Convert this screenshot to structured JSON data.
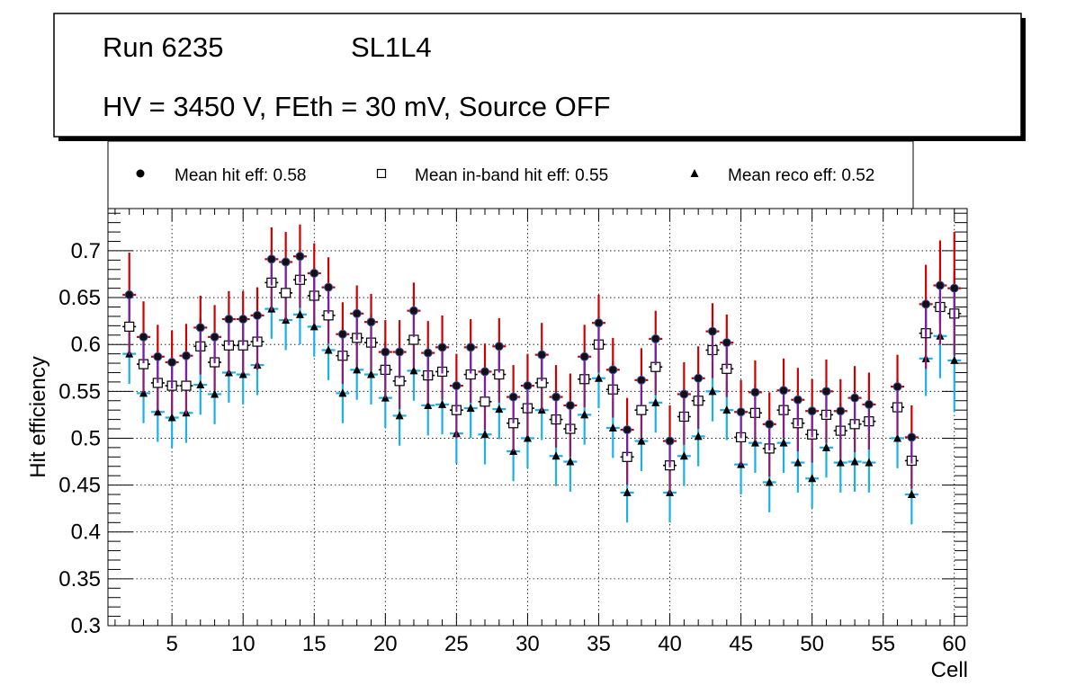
{
  "info_box": {
    "run": "Run 6235",
    "chamber": "SL1L4",
    "conditions": "HV = 3450 V, FEth = 30 mV, Source OFF"
  },
  "legend": {
    "hit": "Mean hit  eff: 0.58",
    "inband": "Mean in-band hit eff: 0.55",
    "reco": "Mean reco eff: 0.52"
  },
  "colors": {
    "hit_err_up": "#cc0000",
    "hit_err_down": "#7b1fa2",
    "hit_marker": "#111111",
    "hit_marker_fill": "#3f51b5",
    "inband_err": "#8e1b6e",
    "inband_marker_fill": "#ffffff",
    "reco_err": "#1ab0e8",
    "reco_marker": "#000000"
  },
  "chart_data": {
    "type": "scatter",
    "title": "",
    "xlabel": "Cell",
    "ylabel": "Hit efficiency",
    "xlim": [
      0.5,
      60.9
    ],
    "ylim": [
      0.3,
      0.745
    ],
    "x_ticks": [
      5,
      10,
      15,
      20,
      25,
      30,
      35,
      40,
      45,
      50,
      55,
      60
    ],
    "y_ticks": [
      0.3,
      0.35,
      0.4,
      0.45,
      0.5,
      0.55,
      0.6,
      0.65,
      0.7
    ],
    "y_tick_labels": [
      "0.3",
      "0.35",
      "0.4",
      "0.45",
      "0.5",
      "0.55",
      "0.6",
      "0.65",
      "0.7"
    ],
    "grid": true,
    "cells": [
      2,
      3,
      4,
      5,
      6,
      7,
      8,
      9,
      10,
      11,
      12,
      13,
      14,
      15,
      16,
      17,
      18,
      19,
      20,
      21,
      22,
      23,
      24,
      25,
      26,
      27,
      28,
      29,
      30,
      31,
      32,
      33,
      34,
      35,
      36,
      37,
      38,
      39,
      40,
      41,
      42,
      43,
      44,
      45,
      46,
      47,
      48,
      49,
      50,
      51,
      52,
      53,
      54,
      56,
      57,
      58,
      59,
      60
    ],
    "series": [
      {
        "name": "Mean hit eff",
        "values": [
          0.653,
          0.608,
          0.587,
          0.581,
          0.588,
          0.618,
          0.608,
          0.627,
          0.627,
          0.631,
          0.691,
          0.688,
          0.694,
          0.676,
          0.661,
          0.611,
          0.633,
          0.624,
          0.592,
          0.592,
          0.636,
          0.591,
          0.597,
          0.556,
          0.597,
          0.571,
          0.598,
          0.544,
          0.556,
          0.589,
          0.544,
          0.535,
          0.587,
          0.623,
          0.573,
          0.509,
          0.562,
          0.606,
          0.497,
          0.547,
          0.564,
          0.614,
          0.602,
          0.528,
          0.549,
          0.515,
          0.551,
          0.541,
          0.529,
          0.55,
          0.529,
          0.543,
          0.536,
          0.555,
          0.501,
          0.643,
          0.663,
          0.66
        ],
        "err_low": [
          0.028,
          0.028,
          0.028,
          0.028,
          0.028,
          0.028,
          0.028,
          0.028,
          0.028,
          0.028,
          0.028,
          0.028,
          0.028,
          0.028,
          0.028,
          0.028,
          0.028,
          0.028,
          0.028,
          0.028,
          0.028,
          0.028,
          0.028,
          0.028,
          0.028,
          0.028,
          0.028,
          0.028,
          0.028,
          0.028,
          0.028,
          0.028,
          0.028,
          0.028,
          0.028,
          0.028,
          0.028,
          0.028,
          0.028,
          0.028,
          0.028,
          0.028,
          0.028,
          0.028,
          0.028,
          0.028,
          0.028,
          0.028,
          0.028,
          0.028,
          0.028,
          0.028,
          0.028,
          0.028,
          0.028,
          0.035,
          0.04,
          0.04
        ],
        "err_high": [
          0.045,
          0.038,
          0.034,
          0.034,
          0.034,
          0.034,
          0.034,
          0.03,
          0.03,
          0.03,
          0.034,
          0.032,
          0.034,
          0.032,
          0.032,
          0.034,
          0.03,
          0.03,
          0.034,
          0.034,
          0.03,
          0.034,
          0.034,
          0.034,
          0.03,
          0.03,
          0.03,
          0.034,
          0.034,
          0.034,
          0.034,
          0.034,
          0.034,
          0.03,
          0.034,
          0.034,
          0.034,
          0.03,
          0.038,
          0.034,
          0.034,
          0.03,
          0.03,
          0.034,
          0.034,
          0.034,
          0.034,
          0.034,
          0.034,
          0.034,
          0.034,
          0.034,
          0.034,
          0.034,
          0.034,
          0.042,
          0.048,
          0.06
        ]
      },
      {
        "name": "Mean in-band hit eff",
        "values": [
          0.619,
          0.579,
          0.559,
          0.556,
          0.556,
          0.598,
          0.581,
          0.599,
          0.599,
          0.603,
          0.666,
          0.655,
          0.669,
          0.652,
          0.631,
          0.588,
          0.607,
          0.602,
          0.573,
          0.561,
          0.605,
          0.567,
          0.571,
          0.53,
          0.568,
          0.539,
          0.568,
          0.516,
          0.532,
          0.559,
          0.52,
          0.51,
          0.563,
          0.6,
          0.552,
          0.48,
          0.53,
          0.576,
          0.471,
          0.523,
          0.54,
          0.594,
          0.574,
          0.501,
          0.527,
          0.489,
          0.53,
          0.516,
          0.504,
          0.525,
          0.508,
          0.515,
          0.518,
          0.533,
          0.476,
          0.612,
          0.64,
          0.633
        ],
        "err_low": [
          0.03,
          0.03,
          0.03,
          0.03,
          0.03,
          0.03,
          0.03,
          0.03,
          0.03,
          0.03,
          0.03,
          0.03,
          0.03,
          0.03,
          0.03,
          0.03,
          0.03,
          0.03,
          0.03,
          0.03,
          0.03,
          0.03,
          0.03,
          0.03,
          0.03,
          0.03,
          0.03,
          0.03,
          0.03,
          0.03,
          0.03,
          0.03,
          0.03,
          0.03,
          0.03,
          0.03,
          0.03,
          0.03,
          0.03,
          0.03,
          0.03,
          0.03,
          0.03,
          0.03,
          0.03,
          0.03,
          0.03,
          0.03,
          0.03,
          0.03,
          0.03,
          0.03,
          0.03,
          0.03,
          0.03,
          0.038,
          0.04,
          0.045
        ],
        "err_high": [
          0.03,
          0.03,
          0.03,
          0.03,
          0.03,
          0.03,
          0.03,
          0.03,
          0.03,
          0.03,
          0.03,
          0.03,
          0.03,
          0.03,
          0.03,
          0.03,
          0.03,
          0.03,
          0.03,
          0.03,
          0.03,
          0.03,
          0.03,
          0.03,
          0.03,
          0.03,
          0.03,
          0.03,
          0.03,
          0.03,
          0.03,
          0.03,
          0.03,
          0.03,
          0.03,
          0.03,
          0.03,
          0.03,
          0.03,
          0.03,
          0.03,
          0.03,
          0.03,
          0.03,
          0.03,
          0.03,
          0.03,
          0.03,
          0.03,
          0.03,
          0.03,
          0.03,
          0.03,
          0.03,
          0.03,
          0.038,
          0.04,
          0.045
        ]
      },
      {
        "name": "Mean reco eff",
        "values": [
          0.59,
          0.548,
          0.528,
          0.522,
          0.527,
          0.557,
          0.547,
          0.57,
          0.568,
          0.578,
          0.638,
          0.626,
          0.632,
          0.619,
          0.594,
          0.548,
          0.573,
          0.568,
          0.543,
          0.524,
          0.572,
          0.535,
          0.536,
          0.505,
          0.532,
          0.504,
          0.531,
          0.486,
          0.5,
          0.53,
          0.481,
          0.475,
          0.525,
          0.564,
          0.511,
          0.442,
          0.497,
          0.538,
          0.442,
          0.481,
          0.502,
          0.55,
          0.53,
          0.472,
          0.495,
          0.453,
          0.495,
          0.474,
          0.457,
          0.49,
          0.474,
          0.475,
          0.474,
          0.5,
          0.44,
          0.585,
          0.609,
          0.583
        ],
        "err_low": [
          0.032,
          0.032,
          0.032,
          0.032,
          0.032,
          0.032,
          0.032,
          0.032,
          0.032,
          0.032,
          0.032,
          0.032,
          0.032,
          0.032,
          0.032,
          0.032,
          0.032,
          0.032,
          0.032,
          0.032,
          0.032,
          0.032,
          0.032,
          0.032,
          0.032,
          0.032,
          0.032,
          0.032,
          0.032,
          0.032,
          0.032,
          0.032,
          0.032,
          0.032,
          0.032,
          0.032,
          0.032,
          0.032,
          0.032,
          0.032,
          0.032,
          0.032,
          0.032,
          0.032,
          0.032,
          0.032,
          0.032,
          0.032,
          0.032,
          0.032,
          0.032,
          0.032,
          0.032,
          0.032,
          0.032,
          0.04,
          0.045,
          0.055
        ],
        "err_high": [
          0.032,
          0.032,
          0.032,
          0.032,
          0.032,
          0.032,
          0.032,
          0.032,
          0.032,
          0.032,
          0.032,
          0.032,
          0.032,
          0.032,
          0.032,
          0.032,
          0.032,
          0.032,
          0.032,
          0.032,
          0.032,
          0.032,
          0.032,
          0.032,
          0.032,
          0.032,
          0.032,
          0.032,
          0.032,
          0.032,
          0.032,
          0.032,
          0.032,
          0.032,
          0.032,
          0.032,
          0.032,
          0.032,
          0.032,
          0.032,
          0.032,
          0.032,
          0.032,
          0.032,
          0.032,
          0.032,
          0.032,
          0.032,
          0.032,
          0.032,
          0.032,
          0.032,
          0.032,
          0.032,
          0.032,
          0.04,
          0.045,
          0.055
        ]
      }
    ]
  }
}
